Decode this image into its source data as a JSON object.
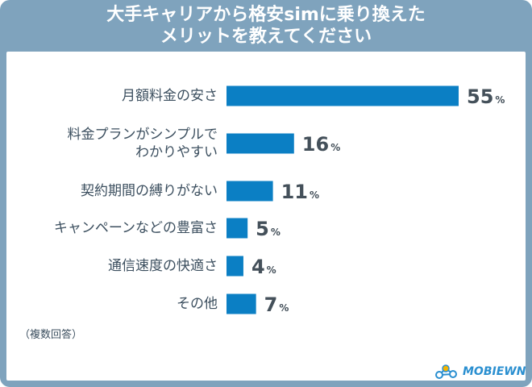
{
  "header": {
    "title_line1": "大手キャリアから格安simに乗り換えた",
    "title_line2": "メリットを教えてください"
  },
  "note": "（複数回答）",
  "logo": {
    "text": "MOBIEWN"
  },
  "colors": {
    "bar": "#0b7fc4",
    "frame": "#7fa3bd",
    "text": "#3c4f5f"
  },
  "chart_data": {
    "type": "bar",
    "orientation": "horizontal",
    "title": "大手キャリアから格安simに乗り換えたメリットを教えてください",
    "categories": [
      [
        "月額料金の安さ"
      ],
      [
        "料金プランがシンプルで",
        "わかりやすい"
      ],
      [
        "契約期間の縛りがない"
      ],
      [
        "キャンペーンなどの豊富さ"
      ],
      [
        "通信速度の快適さ"
      ],
      [
        "その他"
      ]
    ],
    "values": [
      55,
      16,
      11,
      5,
      4,
      7
    ],
    "unit": "%",
    "xlim": [
      0,
      55
    ]
  }
}
